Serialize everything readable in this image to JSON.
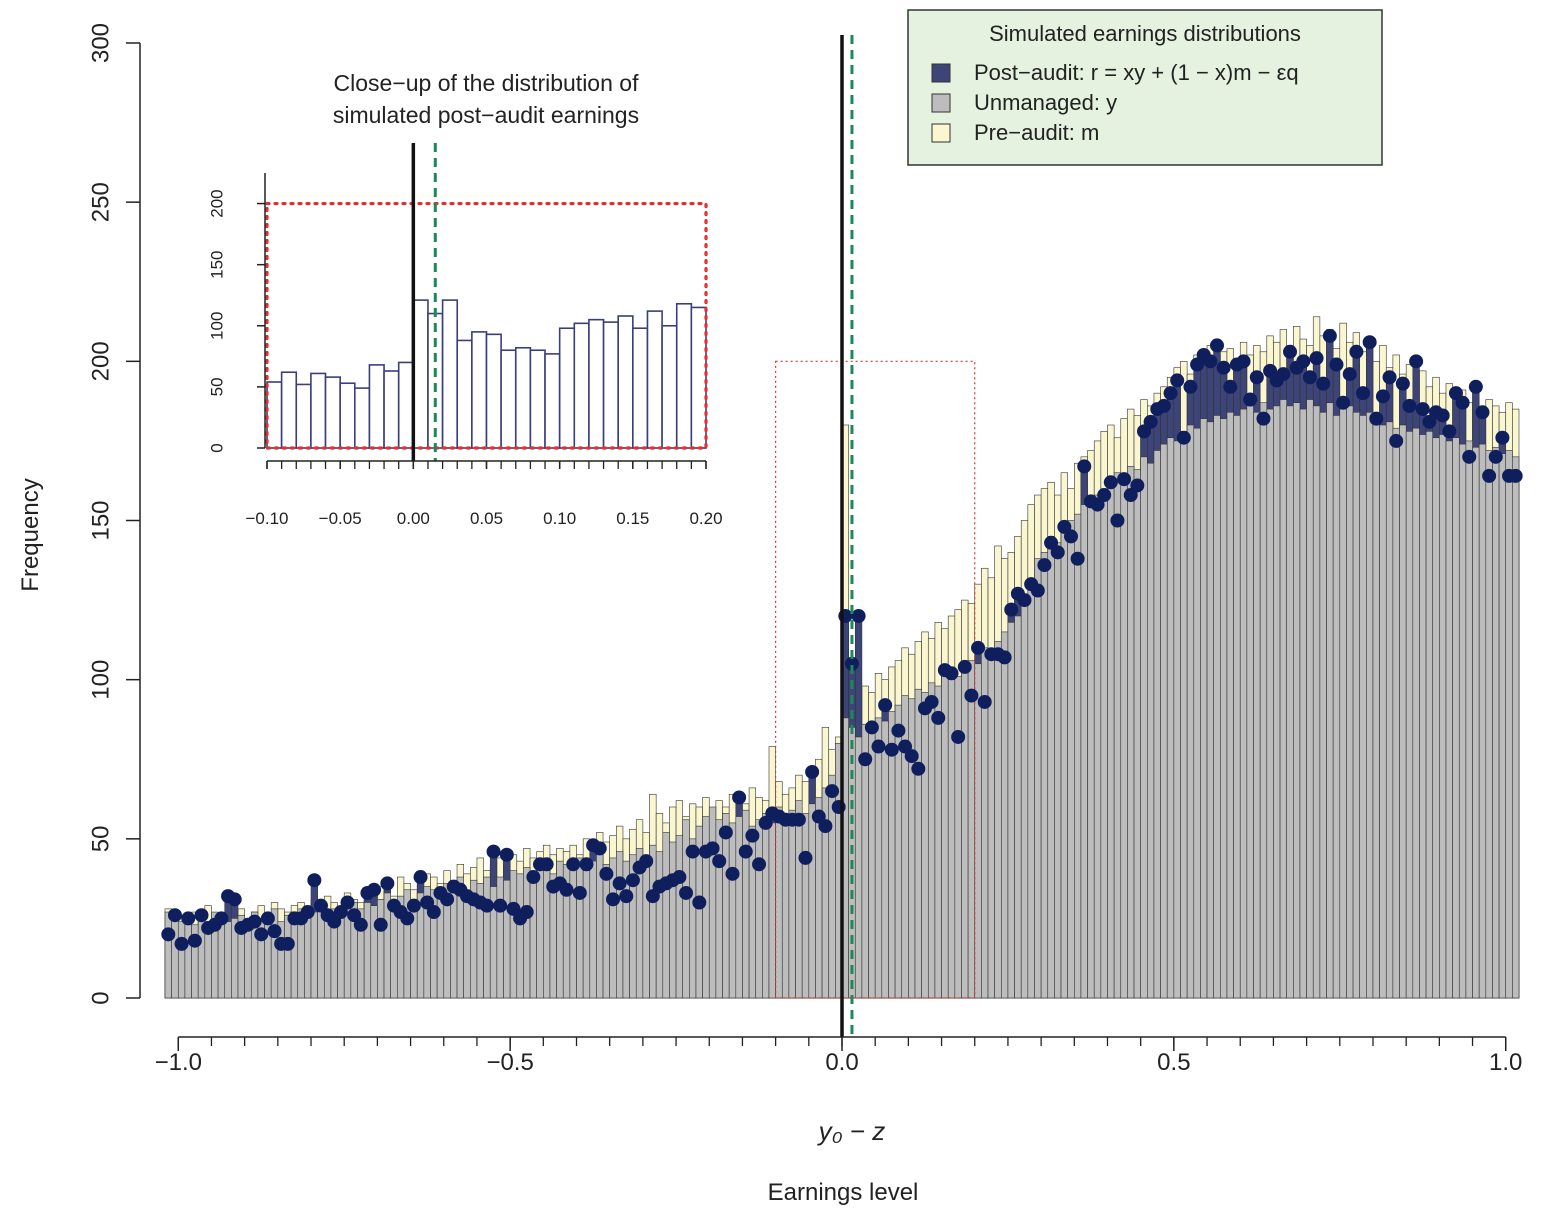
{
  "chart_data": [
    {
      "type": "histogram",
      "x_label": "Earnings level",
      "y_label": "Frequency",
      "legend_title": "Simulated earnings distributions",
      "legend": "top-right",
      "xlim": [
        -1.02,
        1.02
      ],
      "ylim": [
        0,
        300
      ],
      "xticks": [
        {
          "value": -1,
          "label": "−1.0"
        },
        {
          "value": -0.5,
          "label": "−0.5"
        },
        {
          "value": 0,
          "label": "0.0"
        },
        {
          "value": 0.5,
          "label": "0.5"
        },
        {
          "value": 1,
          "label": "1.0"
        }
      ],
      "xminorticks": [
        -1,
        -0.95,
        -0.9,
        -0.85,
        -0.8,
        -0.75,
        -0.7,
        -0.65,
        -0.6,
        -0.55,
        -0.5,
        -0.45,
        -0.4,
        -0.35,
        -0.3,
        -0.25,
        -0.2,
        -0.15,
        -0.1,
        -0.05,
        0,
        0.05,
        0.1,
        0.15,
        0.2,
        0.25,
        0.3,
        0.35,
        0.4,
        0.45,
        0.5,
        0.55,
        0.6,
        0.65,
        0.7,
        0.75,
        0.8,
        0.85,
        0.9,
        0.95,
        1
      ],
      "yticks": [
        0,
        50,
        100,
        150,
        200,
        250,
        300
      ],
      "vlines": [
        {
          "x": 0,
          "color": "#111111"
        },
        {
          "x": 0.015,
          "color": "#1a8a5a",
          "dashed": true,
          "label": "y₀ − z"
        }
      ],
      "closeup_box": {
        "x": [
          -0.1,
          0.2
        ],
        "y": [
          0,
          200
        ],
        "color": "#e03030"
      },
      "bins": [
        -1.02,
        -1.01,
        -1,
        -0.99,
        -0.98,
        -0.97,
        -0.96,
        -0.95,
        -0.94,
        -0.93,
        -0.92,
        -0.91,
        -0.9,
        -0.89,
        -0.88,
        -0.87,
        -0.86,
        -0.85,
        -0.84,
        -0.83,
        -0.82,
        -0.81,
        -0.8,
        -0.79,
        -0.78,
        -0.77,
        -0.76,
        -0.75,
        -0.74,
        -0.73,
        -0.72,
        -0.71,
        -0.7,
        -0.69,
        -0.68,
        -0.67,
        -0.66,
        -0.65,
        -0.64,
        -0.63,
        -0.62,
        -0.61,
        -0.6,
        -0.59,
        -0.58,
        -0.57,
        -0.56,
        -0.55,
        -0.54,
        -0.53,
        -0.52,
        -0.51,
        -0.5,
        -0.49,
        -0.48,
        -0.47,
        -0.46,
        -0.45,
        -0.44,
        -0.43,
        -0.42,
        -0.41,
        -0.4,
        -0.39,
        -0.38,
        -0.37,
        -0.36,
        -0.35,
        -0.34,
        -0.33,
        -0.32,
        -0.31,
        -0.3,
        -0.29,
        -0.28,
        -0.27,
        -0.26,
        -0.25,
        -0.24,
        -0.23,
        -0.22,
        -0.21,
        -0.2,
        -0.19,
        -0.18,
        -0.17,
        -0.16,
        -0.15,
        -0.14,
        -0.13,
        -0.12,
        -0.11,
        -0.1,
        -0.09,
        -0.08,
        -0.07,
        -0.06,
        -0.05,
        -0.04,
        -0.03,
        -0.02,
        -0.01,
        0,
        0.01,
        0.02,
        0.03,
        0.04,
        0.05,
        0.06,
        0.07,
        0.08,
        0.09,
        0.1,
        0.11,
        0.12,
        0.13,
        0.14,
        0.15,
        0.16,
        0.17,
        0.18,
        0.19,
        0.2,
        0.21,
        0.22,
        0.23,
        0.24,
        0.25,
        0.26,
        0.27,
        0.28,
        0.29,
        0.3,
        0.31,
        0.32,
        0.33,
        0.34,
        0.35,
        0.36,
        0.37,
        0.38,
        0.39,
        0.4,
        0.41,
        0.42,
        0.43,
        0.44,
        0.45,
        0.46,
        0.47,
        0.48,
        0.49,
        0.5,
        0.51,
        0.52,
        0.53,
        0.54,
        0.55,
        0.56,
        0.57,
        0.58,
        0.59,
        0.6,
        0.61,
        0.62,
        0.63,
        0.64,
        0.65,
        0.66,
        0.67,
        0.68,
        0.69,
        0.7,
        0.71,
        0.72,
        0.73,
        0.74,
        0.75,
        0.76,
        0.77,
        0.78,
        0.79,
        0.8,
        0.81,
        0.82,
        0.83,
        0.84,
        0.85,
        0.86,
        0.87,
        0.88,
        0.89,
        0.9,
        0.91,
        0.92,
        0.93,
        0.94,
        0.95,
        0.96,
        0.97,
        0.98,
        0.99,
        1,
        1.01,
        1.02
      ],
      "series": [
        {
          "name": "Pre−audit: m",
          "color": "#faf6cf",
          "values": [
            28,
            24,
            26,
            25,
            27,
            24,
            29,
            26,
            25,
            27,
            26,
            28,
            25,
            27,
            29,
            26,
            30,
            28,
            27,
            29,
            30,
            28,
            31,
            29,
            32,
            30,
            28,
            33,
            31,
            30,
            33,
            31,
            35,
            34,
            32,
            38,
            36,
            34,
            37,
            39,
            38,
            36,
            40,
            37,
            42,
            39,
            41,
            44,
            40,
            42,
            44,
            42,
            45,
            43,
            47,
            44,
            46,
            48,
            45,
            47,
            46,
            48,
            45,
            50,
            47,
            52,
            49,
            51,
            54,
            50,
            53,
            56,
            52,
            64,
            58,
            55,
            60,
            62,
            57,
            61,
            60,
            63,
            58,
            62,
            60,
            64,
            59,
            61,
            66,
            63,
            62,
            79,
            68,
            64,
            66,
            70,
            68,
            72,
            75,
            85,
            78,
            82,
            180,
            95,
            90,
            98,
            96,
            102,
            100,
            104,
            106,
            110,
            108,
            112,
            115,
            113,
            118,
            116,
            120,
            122,
            125,
            124,
            130,
            135,
            132,
            142,
            138,
            140,
            145,
            150,
            155,
            158,
            160,
            162,
            158,
            165,
            160,
            168,
            170,
            172,
            175,
            178,
            180,
            176,
            182,
            185,
            183,
            188,
            186,
            190,
            192,
            195,
            198,
            200,
            196,
            202,
            199,
            205,
            200,
            203,
            204,
            200,
            206,
            202,
            205,
            203,
            208,
            206,
            210,
            205,
            211,
            207,
            205,
            214,
            208,
            210,
            204,
            212,
            206,
            209,
            203,
            207,
            200,
            205,
            198,
            202,
            196,
            199,
            194,
            197,
            192,
            195,
            190,
            193,
            188,
            191,
            187,
            190,
            185,
            188,
            186,
            184,
            187,
            185
          ]
        },
        {
          "name": "Post−audit: r = xy + (1 − x)m − εq",
          "color": "#3d4578",
          "dot_color": "#0f1f5e",
          "values": [
            20,
            26,
            17,
            25,
            18,
            26,
            22,
            23,
            25,
            32,
            31,
            22,
            23,
            24,
            20,
            25,
            21,
            17,
            17,
            25,
            25,
            27,
            37,
            29,
            26,
            24,
            27,
            30,
            26,
            23,
            33,
            34,
            23,
            36,
            29,
            27,
            25,
            29,
            38,
            30,
            27,
            33,
            31,
            35,
            34,
            32,
            31,
            30,
            29,
            46,
            29,
            45,
            28,
            25,
            27,
            38,
            42,
            42,
            35,
            36,
            34,
            42,
            33,
            42,
            48,
            47,
            39,
            31,
            36,
            32,
            37,
            41,
            43,
            32,
            35,
            36,
            37,
            38,
            33,
            46,
            30,
            46,
            47,
            43,
            52,
            39,
            63,
            46,
            51,
            42,
            55,
            58,
            57,
            56,
            56,
            56,
            44,
            71,
            57,
            54,
            65,
            60,
            120,
            105,
            120,
            75,
            85,
            79,
            92,
            78,
            84,
            79,
            76,
            72,
            91,
            93,
            88,
            103,
            102,
            82,
            104,
            95,
            110,
            93,
            108,
            108,
            107,
            122,
            127,
            125,
            130,
            128,
            136,
            143,
            140,
            148,
            145,
            138,
            167,
            156,
            155,
            158,
            162,
            150,
            163,
            158,
            161,
            178,
            181,
            185,
            186,
            190,
            194,
            176,
            192,
            199,
            202,
            200,
            205,
            198,
            192,
            199,
            200,
            188,
            195,
            182,
            197,
            194,
            196,
            203,
            198,
            200,
            195,
            201,
            193,
            208,
            199,
            187,
            196,
            203,
            190,
            206,
            182,
            189,
            195,
            175,
            193,
            186,
            200,
            185,
            181,
            184,
            183,
            178,
            190,
            187,
            170,
            192,
            184,
            164,
            170,
            176,
            164,
            164
          ]
        },
        {
          "name": "Unmanaged: y",
          "color": "#bdbdbd",
          "values": [
            27,
            25,
            24,
            26,
            23,
            25,
            24,
            27,
            26,
            24,
            25,
            26,
            24,
            27,
            25,
            26,
            28,
            24,
            26,
            27,
            28,
            26,
            27,
            29,
            27,
            28,
            26,
            29,
            30,
            28,
            30,
            29,
            31,
            33,
            30,
            32,
            34,
            31,
            33,
            35,
            34,
            33,
            36,
            35,
            38,
            34,
            37,
            36,
            38,
            35,
            38,
            37,
            40,
            39,
            41,
            38,
            42,
            40,
            39,
            43,
            42,
            41,
            44,
            40,
            43,
            45,
            42,
            44,
            46,
            43,
            45,
            47,
            44,
            48,
            46,
            52,
            49,
            51,
            56,
            50,
            54,
            57,
            60,
            56,
            58,
            55,
            57,
            59,
            54,
            56,
            58,
            55,
            60,
            57,
            59,
            62,
            58,
            61,
            63,
            66,
            70,
            80,
            88,
            85,
            82,
            86,
            84,
            88,
            87,
            90,
            92,
            95,
            94,
            97,
            96,
            99,
            98,
            102,
            100,
            101,
            104,
            106,
            105,
            110,
            108,
            112,
            115,
            118,
            120,
            125,
            130,
            138,
            140,
            145,
            143,
            148,
            150,
            152,
            155,
            157,
            158,
            160,
            162,
            165,
            163,
            167,
            166,
            170,
            168,
            172,
            174,
            176,
            175,
            178,
            180,
            179,
            182,
            181,
            183,
            182,
            184,
            183,
            185,
            186,
            184,
            187,
            185,
            186,
            188,
            186,
            187,
            185,
            188,
            186,
            184,
            187,
            183,
            185,
            186,
            184,
            183,
            184,
            182,
            180,
            181,
            179,
            180,
            178,
            179,
            177,
            178,
            176,
            177,
            175,
            176,
            174,
            175,
            173,
            174,
            172,
            173,
            171,
            172,
            170
          ]
        }
      ],
      "legend_order": [
        1,
        2,
        0
      ]
    },
    {
      "type": "histogram",
      "title": "Close−up of the distribution of simulated post−audit earnings",
      "title_lines": [
        "Close−up of the distribution of",
        "simulated post−audit earnings"
      ],
      "title_color": "#4a4a8a",
      "xlim": [
        -0.1,
        0.2
      ],
      "ylim": [
        0,
        225
      ],
      "xticks": [
        {
          "value": -0.1,
          "label": "−0.10"
        },
        {
          "value": -0.05,
          "label": "−0.05"
        },
        {
          "value": 0,
          "label": "0.00"
        },
        {
          "value": 0.05,
          "label": "0.05"
        },
        {
          "value": 0.1,
          "label": "0.10"
        },
        {
          "value": 0.15,
          "label": "0.15"
        },
        {
          "value": 0.2,
          "label": "0.20"
        }
      ],
      "xminorticks": [
        -0.1,
        -0.09,
        -0.08,
        -0.07,
        -0.06,
        -0.05,
        -0.04,
        -0.03,
        -0.02,
        -0.01,
        0,
        0.01,
        0.02,
        0.03,
        0.04,
        0.05,
        0.06,
        0.07,
        0.08,
        0.09,
        0.1,
        0.11,
        0.12,
        0.13,
        0.14,
        0.15,
        0.16,
        0.17,
        0.18,
        0.19,
        0.2
      ],
      "yticks": [
        0,
        50,
        100,
        150,
        200
      ],
      "vlines": [
        {
          "x": 0,
          "color": "#111111"
        },
        {
          "x": 0.015,
          "color": "#1a8a5a",
          "dashed": true
        }
      ],
      "closeup_box": {
        "x": [
          -0.1,
          0.2
        ],
        "y": [
          0,
          200
        ],
        "color": "#e03030"
      },
      "bins": [
        -0.1,
        -0.09,
        -0.08,
        -0.07,
        -0.06,
        -0.05,
        -0.04,
        -0.03,
        -0.02,
        -0.01,
        0,
        0.01,
        0.02,
        0.03,
        0.04,
        0.05,
        0.06,
        0.07,
        0.08,
        0.09,
        0.1,
        0.11,
        0.12,
        0.13,
        0.14,
        0.15,
        0.16,
        0.17,
        0.18,
        0.19,
        0.2
      ],
      "series": [
        {
          "color": "#3a3f7a",
          "fill": "#ffffff",
          "values": [
            54,
            62,
            52,
            61,
            58,
            53,
            49,
            68,
            63,
            70,
            121,
            110,
            121,
            88,
            95,
            93,
            80,
            82,
            80,
            77,
            98,
            102,
            105,
            103,
            108,
            98,
            112,
            100,
            118,
            115
          ]
        }
      ]
    }
  ]
}
